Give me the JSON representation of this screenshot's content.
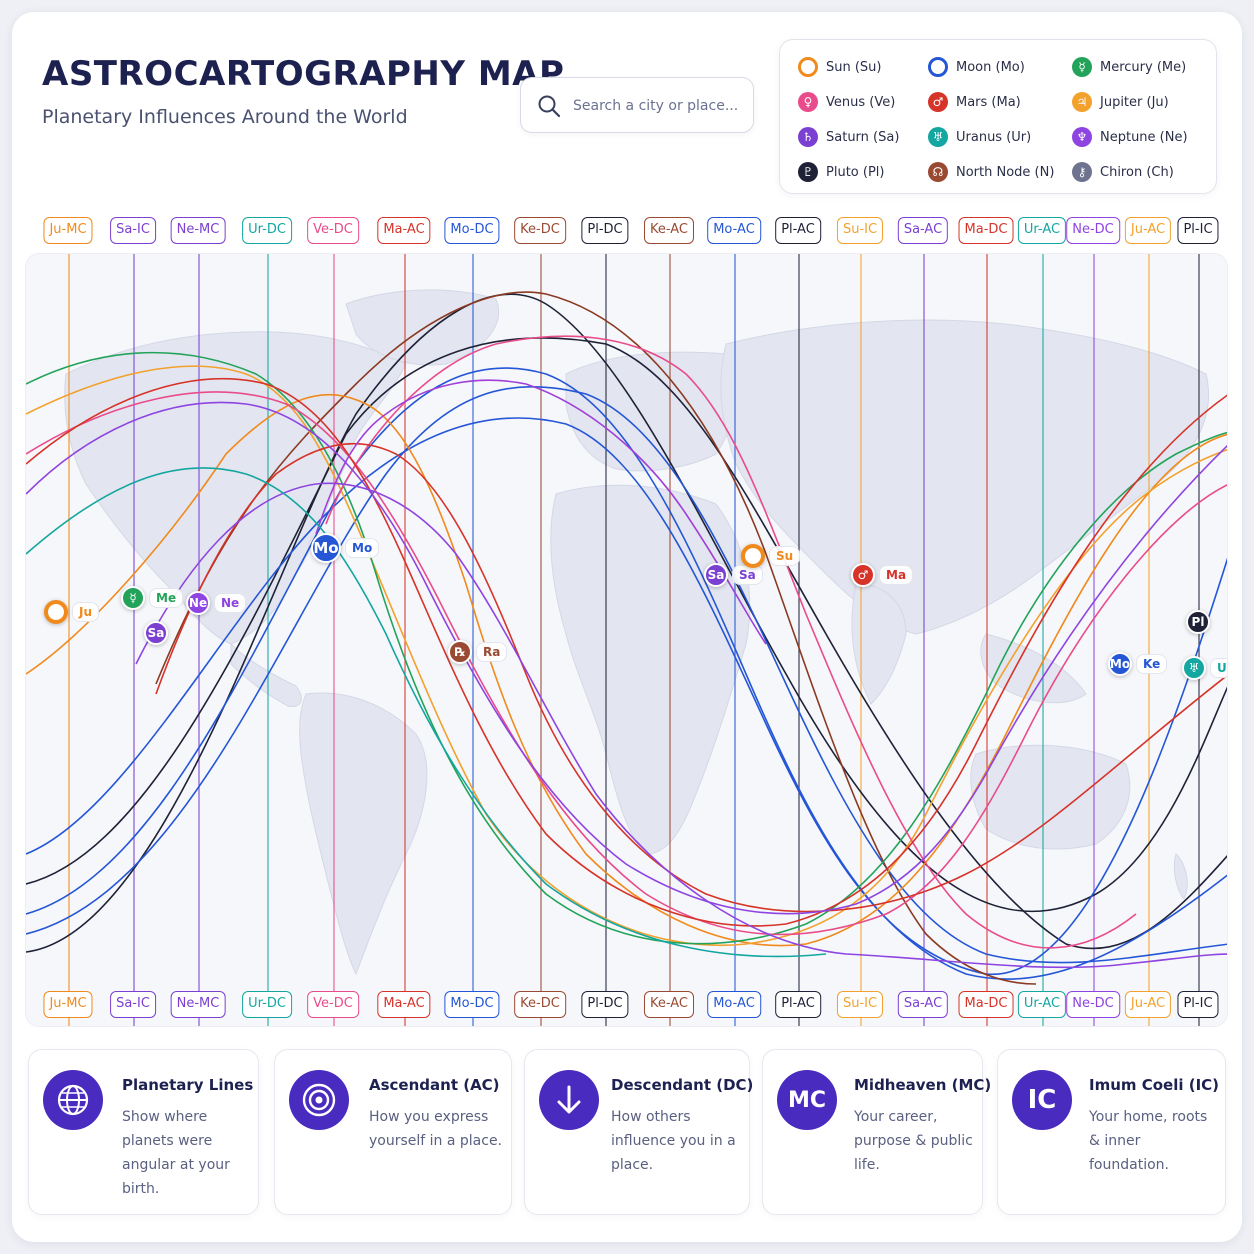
{
  "header": {
    "title": "ASTROCARTOGRAPHY MAP",
    "subtitle": "Planetary Influences Around the World"
  },
  "search": {
    "placeholder": "Search a city or place..."
  },
  "legend": [
    {
      "label": "Sun (Su)",
      "color": "#f08a1c",
      "symbol": "",
      "style": "ring"
    },
    {
      "label": "Moon (Mo)",
      "color": "#2456d6",
      "symbol": "",
      "style": "ring"
    },
    {
      "label": "Mercury (Me)",
      "color": "#23a35a",
      "symbol": "☿",
      "style": "solid"
    },
    {
      "label": "Venus (Ve)",
      "color": "#e94c8a",
      "symbol": "♀",
      "style": "solid"
    },
    {
      "label": "Mars (Ma)",
      "color": "#d63329",
      "symbol": "♂",
      "style": "solid"
    },
    {
      "label": "Jupiter (Ju)",
      "color": "#f2a12c",
      "symbol": "♃",
      "style": "solid"
    },
    {
      "label": "Saturn (Sa)",
      "color": "#7b3fd1",
      "symbol": "♄",
      "style": "solid"
    },
    {
      "label": "Uranus (Ur)",
      "color": "#14a6a0",
      "symbol": "♅",
      "style": "solid"
    },
    {
      "label": "Neptune (Ne)",
      "color": "#8e44e0",
      "symbol": "♆",
      "style": "solid"
    },
    {
      "label": "Pluto (Pl)",
      "color": "#1f2237",
      "symbol": "♇",
      "style": "solid"
    },
    {
      "label": "North Node (N)",
      "color": "#9a4a32",
      "symbol": "☊",
      "style": "solid"
    },
    {
      "label": "Chiron (Ch)",
      "color": "#6e7490",
      "symbol": "⚷",
      "style": "solid"
    }
  ],
  "line_tags": [
    {
      "label": "Ju-MC",
      "color": "#f08a1c"
    },
    {
      "label": "Sa-IC",
      "color": "#7b3fd1"
    },
    {
      "label": "Ne-MC",
      "color": "#7b3fd1"
    },
    {
      "label": "Ur-DC",
      "color": "#14a6a0"
    },
    {
      "label": "Ve-DC",
      "color": "#e94c8a"
    },
    {
      "label": "Ma-AC",
      "color": "#d63329"
    },
    {
      "label": "Mo-DC",
      "color": "#2456d6"
    },
    {
      "label": "Ke-DC",
      "color": "#9a4a32"
    },
    {
      "label": "Pl-DC",
      "color": "#1f2237"
    },
    {
      "label": "Ke-AC",
      "color": "#9a4a32"
    },
    {
      "label": "Mo-AC",
      "color": "#2456d6"
    },
    {
      "label": "Pl-AC",
      "color": "#1f2237"
    },
    {
      "label": "Su-IC",
      "color": "#f2a12c"
    },
    {
      "label": "Sa-AC",
      "color": "#7b3fd1"
    },
    {
      "label": "Ma-DC",
      "color": "#d63329"
    },
    {
      "label": "Ur-AC",
      "color": "#14a6a0"
    },
    {
      "label": "Ne-DC",
      "color": "#8e44e0"
    },
    {
      "label": "Ju-AC",
      "color": "#f2a12c"
    },
    {
      "label": "Pl-IC",
      "color": "#1f2237"
    }
  ],
  "markers": [
    {
      "symbol": "",
      "label": "Ju",
      "color": "#f08a1c",
      "style": "ring"
    },
    {
      "symbol": "☿",
      "label": "Me",
      "color": "#23a35a",
      "style": "icon"
    },
    {
      "symbol": "Sa",
      "label": "",
      "color": "#7b3fd1",
      "style": "icon"
    },
    {
      "symbol": "Ne",
      "label": "Ne",
      "color": "#8e44e0",
      "style": "icon"
    },
    {
      "symbol": "Mo",
      "label": "Mo",
      "color": "#2456d6",
      "style": "icon"
    },
    {
      "symbol": "℞",
      "label": "Ra",
      "color": "#9a4a32",
      "style": "icon"
    },
    {
      "symbol": "Sa",
      "label": "Sa",
      "color": "#7b3fd1",
      "style": "icon"
    },
    {
      "symbol": "",
      "label": "Su",
      "color": "#f08a1c",
      "style": "ring"
    },
    {
      "symbol": "♂",
      "label": "Ma",
      "color": "#d63329",
      "style": "icon"
    },
    {
      "symbol": "Mo",
      "label": "Ke",
      "color": "#2456d6",
      "style": "icon"
    },
    {
      "symbol": "Pl",
      "label": "",
      "color": "#1f2237",
      "style": "icon"
    },
    {
      "symbol": "♅",
      "label": "Ur",
      "color": "#14a6a0",
      "style": "icon"
    }
  ],
  "info_cards": [
    {
      "icon": "globe-icon",
      "title": "Planetary Lines",
      "text": "Show where planets were angular at your birth."
    },
    {
      "icon": "target-icon",
      "title": "Ascendant (AC)",
      "text": "How you express yourself in a place."
    },
    {
      "icon": "arrow-down-icon",
      "title": "Descendant (DC)",
      "text": "How others influence you in a place."
    },
    {
      "icon": "mc-icon",
      "title": "Midheaven (MC)",
      "text": "Your career, purpose & public life.",
      "badge": "MC"
    },
    {
      "icon": "ic-icon",
      "title": "Imum Coeli (IC)",
      "text": "Your home, roots & inner foundation.",
      "badge": "IC"
    }
  ]
}
